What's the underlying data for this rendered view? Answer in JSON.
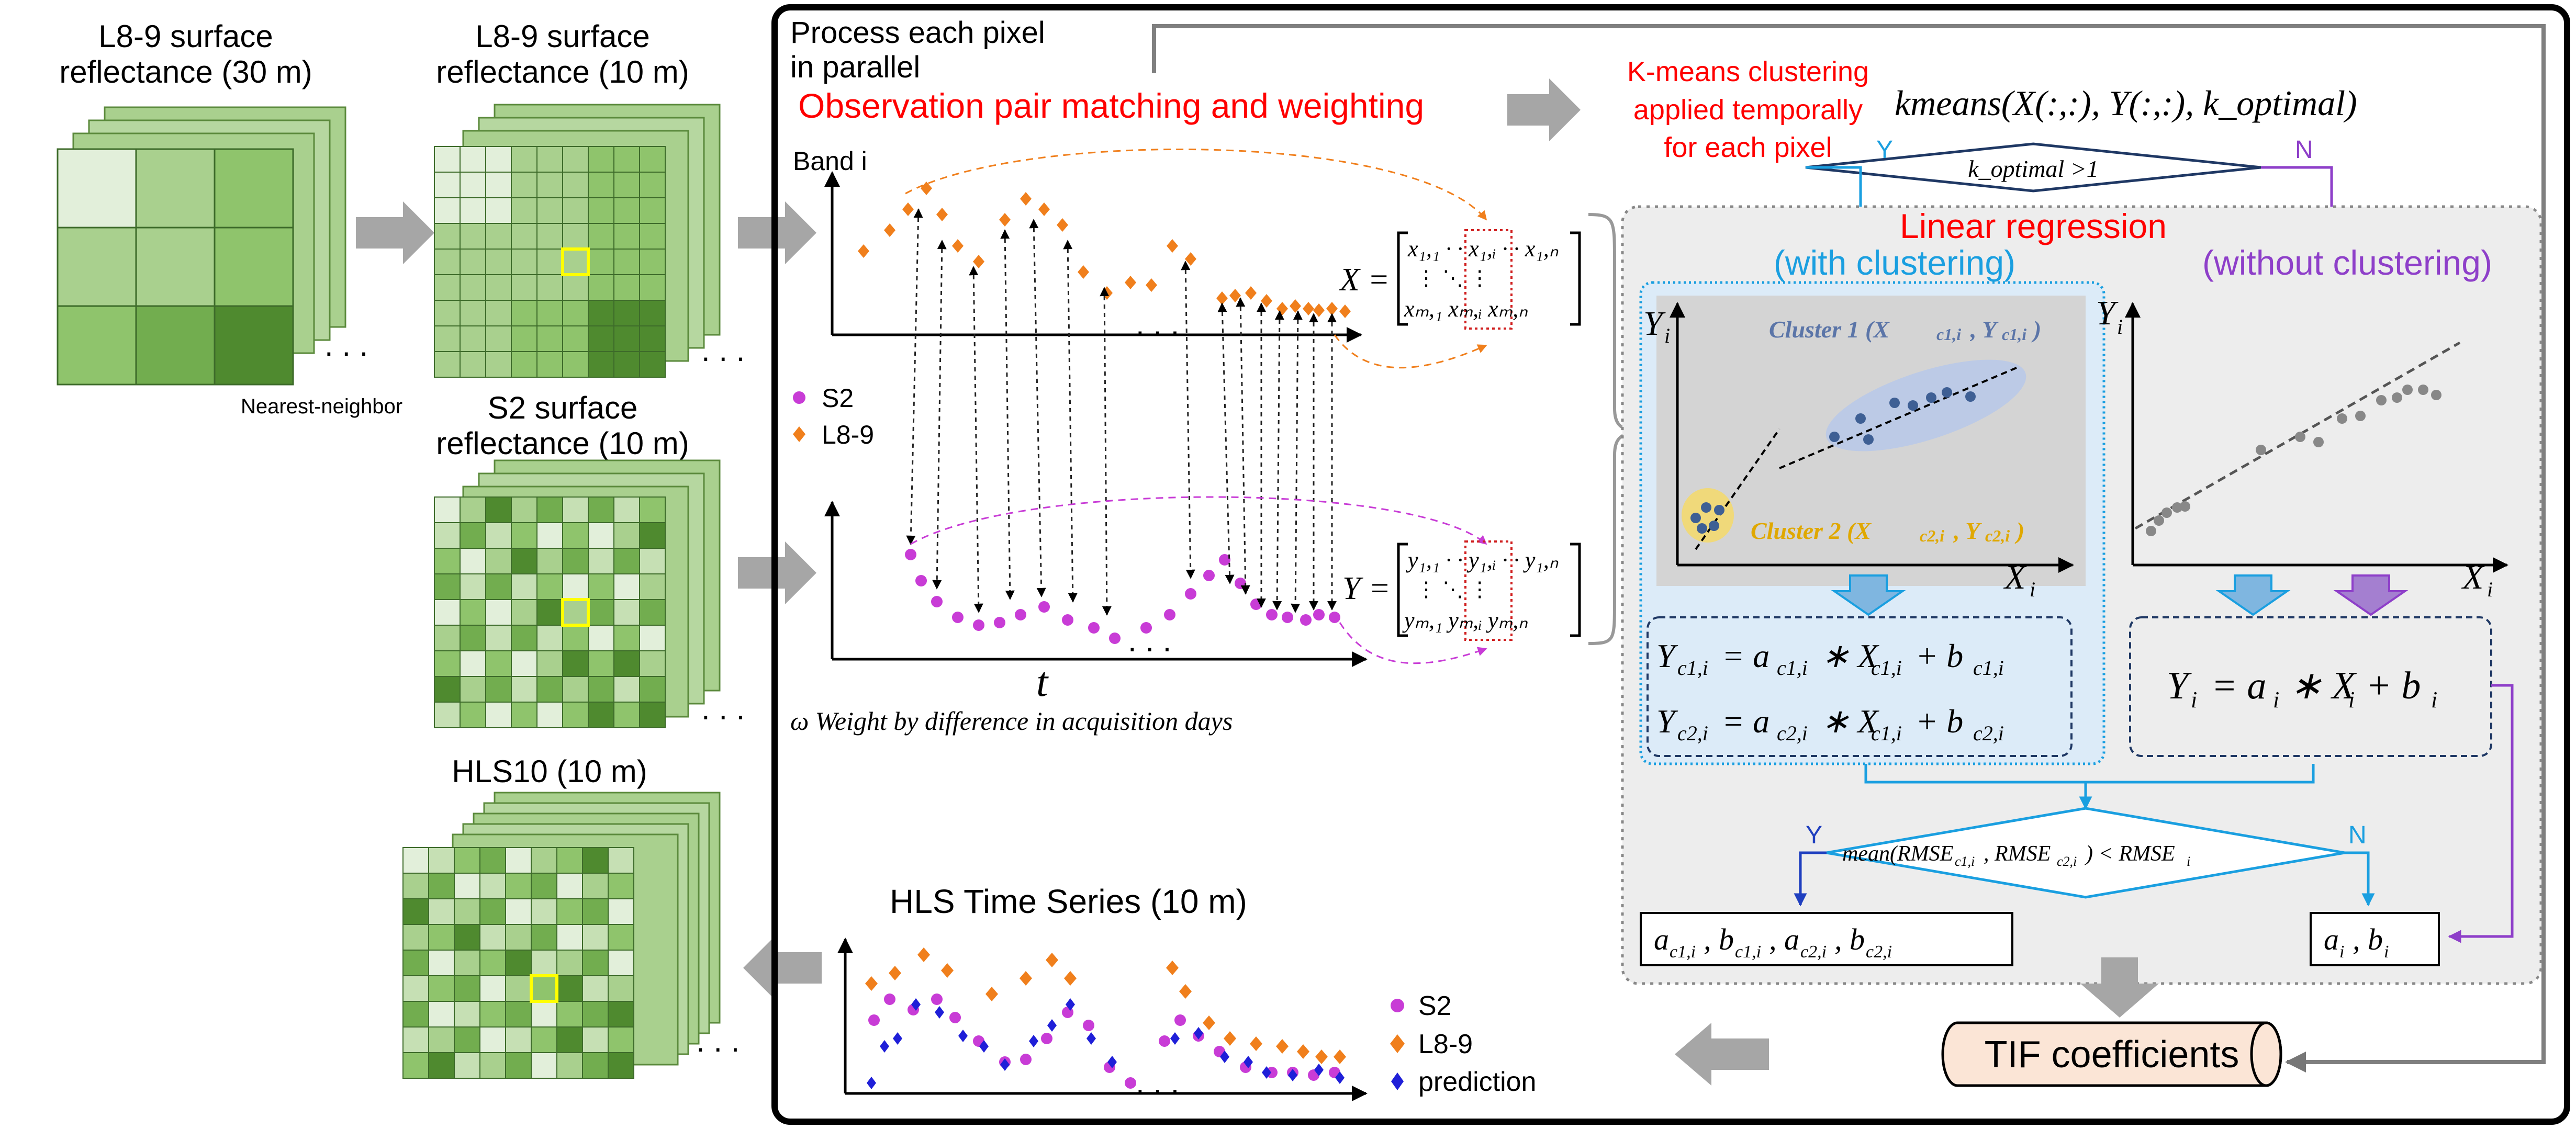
{
  "left": {
    "l89_30": {
      "line1": "L8-9 surface",
      "line2": "reflectance (30 m)"
    },
    "l89_10": {
      "line1": "L8-9 surface",
      "line2": "reflectance (10 m)"
    },
    "nearest": "Nearest-neighbor",
    "s2_10": {
      "line1": "S2 surface",
      "line2": "reflectance (10 m)"
    },
    "hls10": "HLS10 (10 m)"
  },
  "process": {
    "title_line1": "Process each pixel",
    "title_line2": "in parallel",
    "matching": "Observation pair matching and weighting",
    "band_label": "Band i",
    "t_label": "t",
    "weight_note": "ω Weight by difference in acquisition days",
    "legend_s2": "S2",
    "legend_l89": "L8-9",
    "matrix_x": "X =",
    "matrix_y": "Y ="
  },
  "kmeans": {
    "line1": "K-means clustering",
    "line2": "applied temporally",
    "line3": "for each pixel",
    "formula": "kmeans(X(:,:), Y(:,:), k_optimal)",
    "decision": "k_optimal >1",
    "yes": "Y",
    "no": "N"
  },
  "regression": {
    "title": "Linear regression",
    "with": "(with clustering)",
    "without": "(without clustering)",
    "cluster1": "Cluster 1  (X",
    "cluster2": "Cluster 2  (X",
    "axis_y": "Y",
    "axis_x": "X",
    "eq1": "Y",
    "eq_single": "Y",
    "rmse": "mean(RMSE",
    "yes": "Y",
    "no": "N",
    "coef_left": "a",
    "coef_right": "a"
  },
  "output": {
    "tif": "TIF coefficients",
    "series_title": "HLS Time Series (10 m)",
    "legend_s2": "S2",
    "legend_l89": "L8-9",
    "legend_pred": "prediction"
  },
  "colors": {
    "s2": "#c83cd6",
    "l89": "#f07f1c",
    "pred": "#1f1fd8",
    "red_text": "#ff0000",
    "blue": "#1a9fe0",
    "purple": "#8e3fc9",
    "green_light": "#d6ecc8",
    "green_mid": "#93c47d",
    "green_dark": "#4f8a2f"
  },
  "icons": {
    "arrow": "gray-block-arrow",
    "ellipsis": "dots"
  }
}
